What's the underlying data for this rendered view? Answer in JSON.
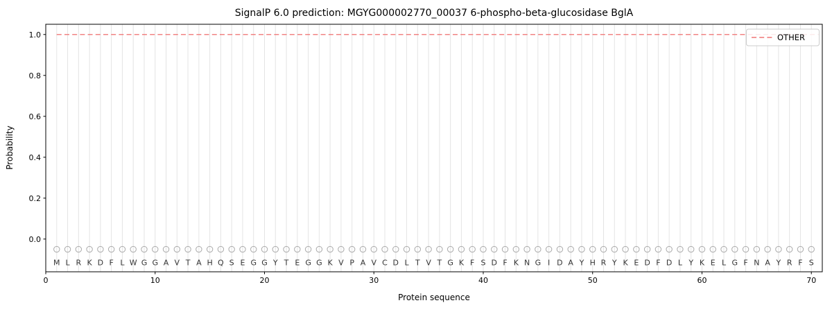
{
  "chart_data": {
    "type": "line",
    "title": "SignalP 6.0 prediction: MGYG000002770_00037 6-phospho-beta-glucosidase BglA",
    "xlabel": "Protein sequence",
    "ylabel": "Probability",
    "x_ticks": [
      0,
      10,
      20,
      30,
      40,
      50,
      60,
      70
    ],
    "y_ticks": [
      "0.0",
      "0.2",
      "0.4",
      "0.6",
      "0.8",
      "1.0"
    ],
    "xlim": [
      0,
      71
    ],
    "ylim": [
      -0.16,
      1.05
    ],
    "grid": true,
    "grid_color": "#e4e4e4",
    "axis_color": "#000000",
    "sequence": "MLRKDFLWGGAVTAHQSEGGYTEGGKVPAVCDLTVTGKFSDFKNGIDAYHRYKEDFDLYKELGFNAYRFS",
    "marker_y": -0.05,
    "letter_y": -0.115,
    "marker_color": "#aaaaaa",
    "letter_color": "#333333",
    "series": [
      {
        "name": "OTHER",
        "color": "#f07575",
        "dash": "7 4.2",
        "y_constant": 1.0,
        "x_start": 1,
        "x_end": 70
      }
    ],
    "legend": {
      "position": "upper-right",
      "entries": [
        {
          "label": "OTHER",
          "color": "#f07575",
          "dash": "7 4.2"
        }
      ]
    }
  }
}
